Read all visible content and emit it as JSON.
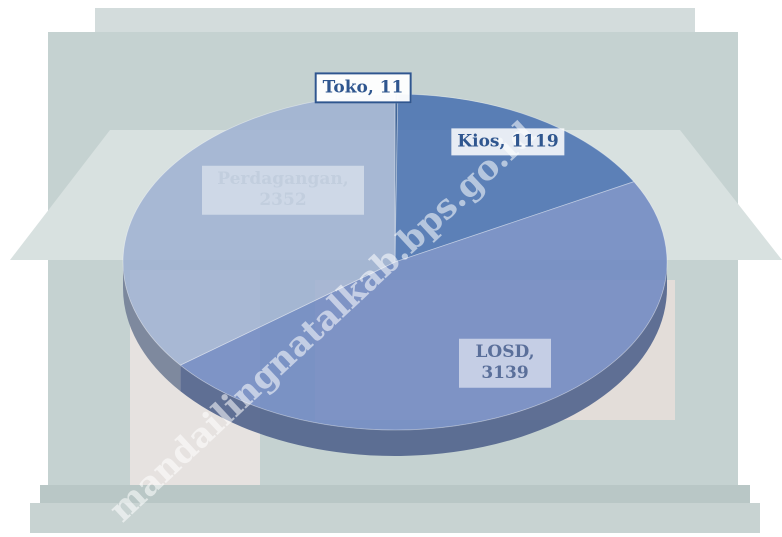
{
  "chart_data": {
    "type": "pie",
    "values": [
      11,
      1119,
      3139,
      2352
    ],
    "value_labels": [
      "Toko, 11",
      "Kios, 1119",
      "LOSD, 3139",
      "Perdagangan, 2352"
    ],
    "colors": [
      "#2f568f",
      "#4a72b0",
      "#6f89c2",
      "#9fb2d2"
    ],
    "watermark": "mandailingnatalkab.bps.go.id"
  }
}
